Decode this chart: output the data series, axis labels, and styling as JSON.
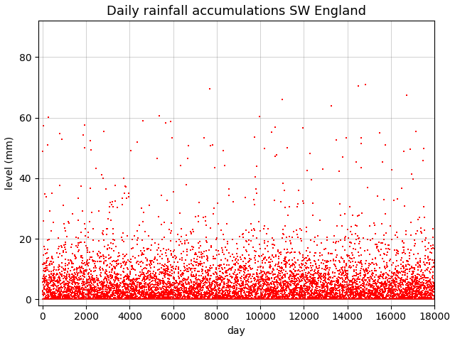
{
  "title": "Daily rainfall accumulations SW England",
  "xlabel": "day",
  "ylabel": "level (mm)",
  "xlim": [
    -200,
    18000
  ],
  "ylim": [
    -2,
    92
  ],
  "xticks": [
    0,
    2000,
    4000,
    6000,
    8000,
    10000,
    12000,
    14000,
    16000,
    18000
  ],
  "yticks": [
    0,
    20,
    40,
    60,
    80
  ],
  "marker_color": "red",
  "marker": "s",
  "marker_size": 1.0,
  "background_color": "white",
  "grid": true,
  "seed": 42,
  "n_points": 18000,
  "title_fontsize": 13,
  "figwidth": 6.4,
  "figheight": 4.8
}
